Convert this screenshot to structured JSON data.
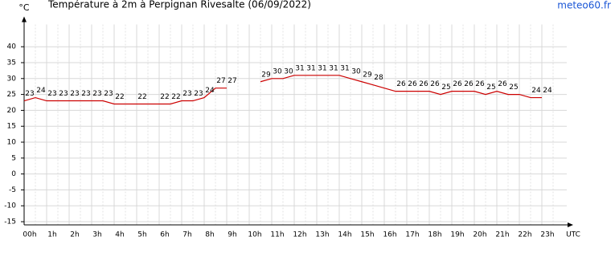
{
  "chart_data": {
    "type": "line",
    "title": "Température à 2m à Perpignan Rivesalte (06/09/2022)",
    "y_label": "°C",
    "x_label": "UTC",
    "source": "meteo60.fr",
    "x": [
      0,
      0.5,
      1,
      1.5,
      2,
      2.5,
      3,
      3.5,
      4,
      4.5,
      5,
      5.5,
      6,
      6.5,
      7,
      7.5,
      8,
      8.5,
      9,
      9.5,
      10,
      10.5,
      11,
      11.5,
      12,
      12.5,
      13,
      13.5,
      14,
      14.5,
      15,
      15.5,
      16,
      16.5,
      17,
      17.5,
      18,
      18.5,
      19,
      19.5,
      20,
      20.5,
      21,
      21.5,
      22,
      22.5,
      23
    ],
    "series": [
      {
        "name": "Température",
        "color": "#cc0000",
        "values": [
          23,
          24,
          23,
          23,
          23,
          23,
          23,
          23,
          22,
          22,
          22,
          22,
          22,
          22,
          23,
          23,
          24,
          27,
          27,
          null,
          null,
          29,
          30,
          30,
          31,
          31,
          31,
          31,
          31,
          30,
          29,
          28,
          27,
          26,
          26,
          26,
          26,
          25,
          26,
          26,
          26,
          25,
          26,
          25,
          25,
          24,
          24
        ],
        "value_labels": [
          "23",
          "24",
          "23",
          "23",
          "23",
          "23",
          "23",
          "23",
          "22",
          null,
          "22",
          null,
          "22",
          "22",
          "23",
          "23",
          "24",
          "27",
          "27",
          null,
          null,
          "29",
          "30",
          "30",
          "31",
          "31",
          "31",
          "31",
          "31",
          "30",
          "29",
          "28",
          null,
          "26",
          "26",
          "26",
          "26",
          "25",
          "26",
          "26",
          "26",
          "25",
          "26",
          "25",
          null,
          "24",
          "24"
        ]
      }
    ],
    "xlim": [
      0,
      24.25
    ],
    "xticks": [
      {
        "value": 0,
        "label": "00h"
      },
      {
        "value": 1,
        "label": "1h"
      },
      {
        "value": 2,
        "label": "2h"
      },
      {
        "value": 3,
        "label": "3h"
      },
      {
        "value": 4,
        "label": "4h"
      },
      {
        "value": 5,
        "label": "5h"
      },
      {
        "value": 6,
        "label": "6h"
      },
      {
        "value": 7,
        "label": "7h"
      },
      {
        "value": 8,
        "label": "8h"
      },
      {
        "value": 9,
        "label": "9h"
      },
      {
        "value": 10,
        "label": "10h"
      },
      {
        "value": 11,
        "label": "11h"
      },
      {
        "value": 12,
        "label": "12h"
      },
      {
        "value": 13,
        "label": "13h"
      },
      {
        "value": 14,
        "label": "14h"
      },
      {
        "value": 15,
        "label": "15h"
      },
      {
        "value": 16,
        "label": "16h"
      },
      {
        "value": 17,
        "label": "17h"
      },
      {
        "value": 18,
        "label": "18h"
      },
      {
        "value": 19,
        "label": "19h"
      },
      {
        "value": 20,
        "label": "20h"
      },
      {
        "value": 21,
        "label": "21h"
      },
      {
        "value": 22,
        "label": "22h"
      },
      {
        "value": 23,
        "label": "23h"
      }
    ],
    "ylim": [
      -16,
      48
    ],
    "yticks": [
      -15,
      -10,
      -5,
      0,
      5,
      10,
      15,
      20,
      25,
      30,
      35,
      40
    ],
    "grid": true
  }
}
